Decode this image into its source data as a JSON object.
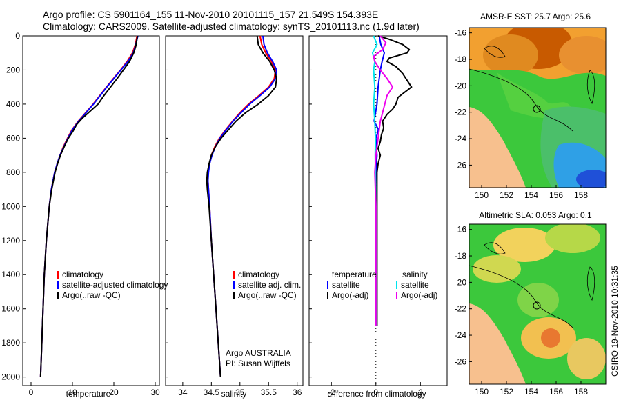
{
  "titles": {
    "line1": "Argo profile: CS 5901164_155 11-Nov-2010 20101115_157 21.549S 154.393E",
    "line2": "Climatology: CARS2009. Satellite-adjusted climatology: synTS_20101113.nc (1.9d later)"
  },
  "credit": "CSIRO 19-Nov-2010 10:31:35",
  "chart_data": [
    {
      "type": "line",
      "id": "temperature",
      "xlabel": "temperature",
      "ylabel": "",
      "xlim": [
        -2,
        31
      ],
      "ylim": [
        2050,
        0
      ],
      "xticks": [
        0,
        10,
        20,
        30
      ],
      "yticks": [
        0,
        200,
        400,
        600,
        800,
        1000,
        1200,
        1400,
        1600,
        1800,
        2000
      ],
      "legend": [
        "climatology",
        "satellite-adjusted climatology",
        "Argo(..raw -QC)"
      ],
      "legend_position": "lower-right",
      "series": [
        {
          "name": "climatology",
          "color": "#ff0000",
          "depth": [
            0,
            50,
            100,
            150,
            200,
            250,
            300,
            350,
            400,
            450,
            500,
            550,
            600,
            650,
            700,
            750,
            800,
            900,
            1000,
            1200,
            1400,
            1600,
            1800,
            2000
          ],
          "values": [
            25.6,
            25.2,
            24.5,
            23.2,
            21.6,
            19.9,
            18.2,
            16.6,
            15.0,
            13.2,
            11.4,
            9.9,
            8.8,
            7.8,
            7.0,
            6.3,
            5.7,
            4.9,
            4.4,
            3.7,
            3.2,
            2.9,
            2.6,
            2.3
          ]
        },
        {
          "name": "satellite-adjusted climatology",
          "color": "#0000ff",
          "depth": [
            0,
            50,
            100,
            150,
            200,
            250,
            300,
            350,
            400,
            450,
            500,
            550,
            600,
            650,
            700,
            750,
            800,
            900,
            1000,
            1200,
            1400,
            1600,
            1800,
            2000
          ],
          "values": [
            25.8,
            25.3,
            24.7,
            23.4,
            21.7,
            20.0,
            18.3,
            16.7,
            15.1,
            13.3,
            11.5,
            10.0,
            8.9,
            7.9,
            7.0,
            6.3,
            5.7,
            4.9,
            4.4,
            3.7,
            3.2,
            2.9,
            2.6,
            2.3
          ]
        },
        {
          "name": "Argo(..raw -QC)",
          "color": "#000000",
          "depth": [
            0,
            30,
            60,
            100,
            150,
            200,
            250,
            300,
            350,
            400,
            450,
            480,
            520,
            560,
            600,
            650,
            700,
            750,
            800,
            900,
            1000,
            1200,
            1400,
            1600,
            1800,
            2000
          ],
          "values": [
            25.7,
            25.5,
            25.3,
            24.8,
            23.8,
            22.3,
            20.8,
            19.2,
            17.6,
            16.2,
            13.9,
            12.5,
            11.0,
            10.1,
            9.0,
            8.0,
            7.1,
            6.4,
            5.8,
            5.0,
            4.4,
            3.7,
            3.2,
            2.9,
            2.6,
            2.3
          ]
        }
      ]
    },
    {
      "type": "line",
      "id": "salinity",
      "xlabel": "salinity",
      "xlim": [
        33.7,
        36.1
      ],
      "ylim": [
        2050,
        0
      ],
      "xticks": [
        34,
        34.5,
        35,
        35.5,
        36
      ],
      "legend": [
        "climatology",
        "satellite adj. clim.",
        "Argo(..raw -QC)"
      ],
      "legend_position": "lower-right",
      "annotation": [
        "Argo AUSTRALIA",
        "PI: Susan Wijffels"
      ],
      "series": [
        {
          "name": "climatology",
          "color": "#ff0000",
          "depth": [
            0,
            50,
            100,
            150,
            200,
            250,
            300,
            350,
            400,
            450,
            500,
            550,
            600,
            650,
            700,
            750,
            800,
            850,
            900,
            1000,
            1200,
            1400,
            1600,
            1800,
            2000
          ],
          "values": [
            35.35,
            35.38,
            35.45,
            35.55,
            35.62,
            35.6,
            35.5,
            35.33,
            35.15,
            35.0,
            34.87,
            34.75,
            34.64,
            34.56,
            34.5,
            34.47,
            34.44,
            34.44,
            34.45,
            34.47,
            34.5,
            34.54,
            34.58,
            34.62,
            34.66
          ]
        },
        {
          "name": "satellite adj. clim.",
          "color": "#0000ff",
          "depth": [
            0,
            50,
            100,
            150,
            200,
            250,
            300,
            350,
            400,
            450,
            500,
            550,
            600,
            650,
            700,
            750,
            800,
            850,
            900,
            1000,
            1200,
            1400,
            1600,
            1800,
            2000
          ],
          "values": [
            35.4,
            35.42,
            35.48,
            35.57,
            35.64,
            35.62,
            35.52,
            35.35,
            35.17,
            35.02,
            34.88,
            34.76,
            34.65,
            34.57,
            34.51,
            34.47,
            34.45,
            34.44,
            34.45,
            34.47,
            34.5,
            34.54,
            34.58,
            34.62,
            34.66
          ]
        },
        {
          "name": "Argo(..raw -QC)",
          "color": "#000000",
          "depth": [
            0,
            50,
            100,
            150,
            200,
            250,
            300,
            350,
            400,
            450,
            500,
            550,
            600,
            650,
            700,
            750,
            800,
            850,
            900,
            1000,
            1200,
            1400,
            1600,
            1800,
            2000
          ],
          "values": [
            35.3,
            35.32,
            35.4,
            35.52,
            35.6,
            35.64,
            35.62,
            35.5,
            35.32,
            35.1,
            34.93,
            34.8,
            34.67,
            34.57,
            34.5,
            34.46,
            34.43,
            34.42,
            34.43,
            34.46,
            34.5,
            34.54,
            34.58,
            34.62,
            34.66
          ]
        }
      ]
    },
    {
      "type": "line",
      "id": "difference",
      "xlabel": "difference from climatology",
      "xlim": [
        -3,
        3.2
      ],
      "ylim": [
        2050,
        0
      ],
      "xticks": [
        -2,
        0,
        2
      ],
      "reference_line": 0,
      "legend_headers": [
        "temperature",
        "salinity"
      ],
      "legend": [
        "satellite",
        "Argo(-adj)",
        "satellite",
        "Argo(-adj)"
      ],
      "series": [
        {
          "name": "temperature satellite",
          "color": "#0000ff",
          "depth": [
            0,
            50,
            100,
            150,
            200,
            300,
            400,
            500,
            550,
            600,
            700,
            800,
            900,
            1000,
            1200,
            1400,
            1600,
            1700
          ],
          "values": [
            0.15,
            0.22,
            0.38,
            0.28,
            0.2,
            0.1,
            0.05,
            -0.08,
            0.12,
            0.0,
            0.05,
            0.0,
            -0.02,
            0.0,
            0.0,
            0.0,
            0.0,
            0.0
          ]
        },
        {
          "name": "temperature Argo(-adj)",
          "color": "#000000",
          "depth": [
            0,
            20,
            50,
            80,
            100,
            130,
            150,
            180,
            220,
            260,
            300,
            330,
            360,
            400,
            430,
            460,
            500,
            540,
            580,
            620,
            660,
            700,
            750,
            800,
            900,
            1000,
            1200,
            1400,
            1600,
            1700
          ],
          "values": [
            0.1,
            0.6,
            1.2,
            1.5,
            1.4,
            0.6,
            0.5,
            0.9,
            1.2,
            1.4,
            1.6,
            1.3,
            1.0,
            0.9,
            0.75,
            0.5,
            0.3,
            0.35,
            0.25,
            0.2,
            0.1,
            0.2,
            0.1,
            0.05,
            0.05,
            0.05,
            0.05,
            0.05,
            0.05,
            0.05
          ]
        },
        {
          "name": "salinity satellite",
          "color": "#00e5ee",
          "depth": [
            0,
            50,
            100,
            150,
            200,
            300,
            400,
            500,
            600,
            700,
            800,
            1000,
            1200,
            1400,
            1600,
            1700
          ],
          "values": [
            -0.1,
            0.05,
            -0.15,
            -0.05,
            -0.1,
            -0.05,
            -0.1,
            -0.05,
            -0.02,
            -0.03,
            -0.02,
            0.0,
            0.0,
            0.0,
            0.0,
            0.0
          ]
        },
        {
          "name": "salinity Argo(-adj)",
          "color": "#ee00ee",
          "depth": [
            0,
            40,
            80,
            120,
            150,
            200,
            250,
            300,
            350,
            400,
            450,
            500,
            600,
            700,
            800,
            1000,
            1200,
            1400,
            1600,
            1700
          ],
          "values": [
            0.2,
            0.45,
            0.3,
            -0.1,
            -0.05,
            0.2,
            0.5,
            0.75,
            0.5,
            0.4,
            0.3,
            0.2,
            0.1,
            0.0,
            -0.05,
            0.0,
            0.0,
            0.0,
            0.0,
            0.0
          ]
        }
      ]
    }
  ],
  "maps": [
    {
      "title": "AMSR-E SST: 25.7 Argo: 25.6",
      "xticks": [
        "150",
        "152",
        "154",
        "156",
        "158"
      ],
      "yticks": [
        "-16",
        "-18",
        "-20",
        "-22",
        "-24",
        "-26"
      ]
    },
    {
      "title": "Altimetric SLA: 0.053 Argo: 0.1",
      "xticks": [
        "150",
        "152",
        "154",
        "156",
        "158"
      ],
      "yticks": [
        "-16",
        "-18",
        "-20",
        "-22",
        "-24",
        "-26"
      ]
    }
  ],
  "colors": {
    "land": "#f7c08e",
    "sst_warm": "#c85a00",
    "sst_mid": "#f2a030",
    "sst_green": "#3cc83c",
    "sst_cool": "#2fa0e6",
    "sla_yellow": "#f2d25c",
    "sla_green": "#3cc83c",
    "sla_orange": "#e87830"
  }
}
